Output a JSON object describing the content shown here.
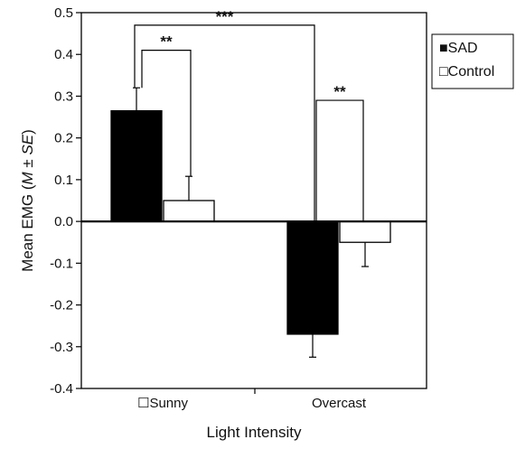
{
  "chart_data": {
    "type": "bar",
    "title": "",
    "xlabel": "Light Intensity",
    "ylabel": "Mean EMG (M ± SE)",
    "ylabel_parts": [
      "Mean EMG (",
      "M",
      " ± ",
      "SE",
      ")"
    ],
    "ylim": [
      -0.4,
      0.5
    ],
    "yticks": [
      "0.5",
      "0.4",
      "0.3",
      "0.2",
      "0.1",
      "0.0",
      "-0.1",
      "-0.2",
      "-0.3",
      "-0.4"
    ],
    "ytick_values": [
      0.5,
      0.4,
      0.3,
      0.2,
      0.1,
      0.0,
      -0.1,
      -0.2,
      -0.3,
      -0.4
    ],
    "categories": [
      "☐Sunny",
      "Overcast"
    ],
    "series": [
      {
        "name": "SAD",
        "color": "#000000",
        "values": [
          0.265,
          -0.27
        ],
        "errors": [
          0.055,
          0.055
        ]
      },
      {
        "name": "Control",
        "color": "#ffffff",
        "values": [
          0.05,
          -0.05
        ],
        "errors": [
          0.058,
          0.058
        ]
      }
    ],
    "legend": {
      "placement": "right",
      "entries": [
        {
          "symbol": "■",
          "label": "SAD"
        },
        {
          "symbol": "□",
          "label": "Control"
        }
      ]
    },
    "significance": [
      {
        "label": "***",
        "between": "SAD Sunny vs SAD Overcast",
        "bracket_top": 0.47,
        "left_end": 0.32,
        "right_end": 0.0
      },
      {
        "label": "**",
        "between": "SAD Sunny vs Control Sunny",
        "bracket_top": 0.41,
        "left_end": 0.32,
        "right_end": 0.108
      },
      {
        "label": "**",
        "between": "SAD Overcast vs Control Overcast",
        "bracket_top": 0.29,
        "left_end": 0.0,
        "right_end": 0.0
      }
    ],
    "grid": false
  }
}
